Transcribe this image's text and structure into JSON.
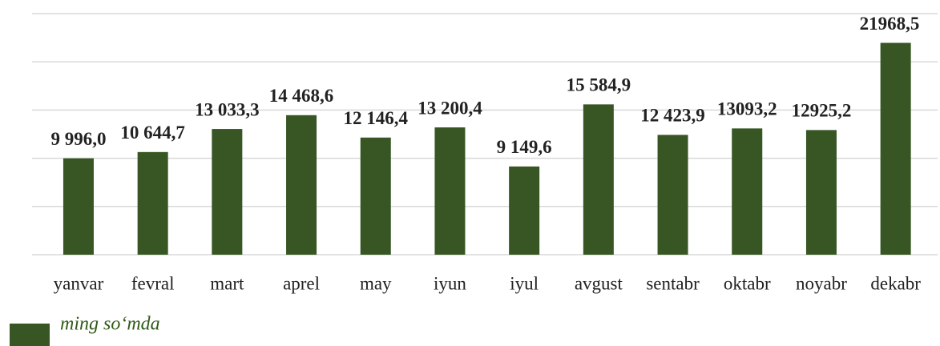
{
  "chart_data": {
    "type": "bar",
    "categories": [
      "yanvar",
      "fevral",
      "mart",
      "aprel",
      "may",
      "iyun",
      "iyul",
      "avgust",
      "sentabr",
      "oktabr",
      "noyabr",
      "dekabr"
    ],
    "series": [
      {
        "name": "ming so‘mda",
        "color": "#375623",
        "values": [
          9996.0,
          10644.7,
          13033.3,
          14468.6,
          12146.4,
          13200.4,
          9149.6,
          15584.9,
          12423.9,
          13093.2,
          12925.2,
          21968.5
        ],
        "value_labels": [
          "9 996,0",
          "10 644,7",
          "13 033,3",
          "14 468,6",
          "12 146,4",
          "13 200,4",
          "9 149,6",
          "15 584,9",
          "12 423,9",
          "13093,2",
          "12925,2",
          "21968,5"
        ]
      }
    ],
    "ylim": [
      0,
      25000
    ],
    "yticks": [
      0,
      5000,
      10000,
      15000,
      20000,
      25000
    ],
    "grid": true
  }
}
